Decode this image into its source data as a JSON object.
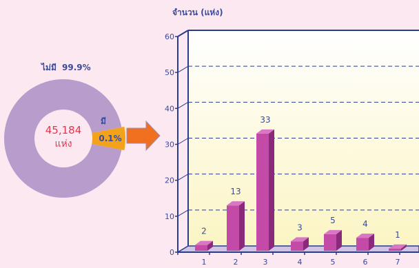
{
  "colors": {
    "background": "#fce8f1",
    "donut_main": "#b89ccc",
    "donut_small": "#f3a21b",
    "center_text": "#e8334a",
    "arrow": "#f07020",
    "bar": "#c44aa8",
    "bar_side": "#8a2a7a",
    "bar_top": "#d977c4",
    "axis": "#2a3a8c",
    "text": "#3a4a9c"
  },
  "donut": {
    "center_value": "45,184",
    "center_unit": "แห่ง",
    "slices": [
      {
        "label": "ไม่มี",
        "percent_text": "99.9%",
        "value": 99.9
      },
      {
        "label": "มี",
        "percent_text": "0.1%",
        "value": 0.1
      }
    ]
  },
  "chart_data": {
    "type": "bar",
    "ylabel": "จำนวน (แห่ง)",
    "categories": [
      "1",
      "2",
      "3",
      "4",
      "5",
      "6",
      "7"
    ],
    "values": [
      2,
      13,
      33,
      3,
      5,
      4,
      1
    ],
    "ylim": [
      0,
      60
    ],
    "yticks": [
      0,
      10,
      20,
      30,
      40,
      50,
      60
    ],
    "grid": true,
    "legend": "none"
  }
}
